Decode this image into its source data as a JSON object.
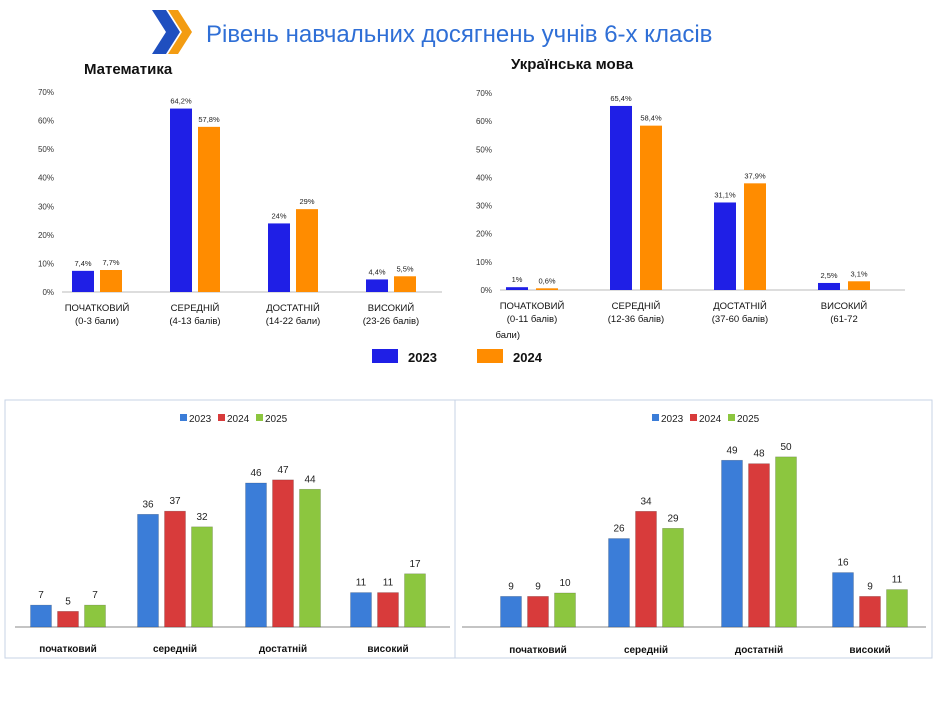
{
  "title": "Рівень навчальних досягнень учнів 6-х класів",
  "colors": {
    "title": "#2f6fd6",
    "logo_orange": "#f39c12",
    "logo_blue": "#1f4fbf",
    "top_2023": "#1f1fe6",
    "top_2024": "#ff8c00",
    "bottom_2023": "#3b7dd8",
    "bottom_2024": "#d83b3b",
    "bottom_2025": "#8cc63f",
    "frame": "#c7d3e6"
  },
  "top_legend": [
    {
      "name": "2023",
      "color": "#1f1fe6"
    },
    {
      "name": "2024",
      "color": "#ff8c00"
    }
  ],
  "chart_data": [
    {
      "type": "bar",
      "title": "Математика",
      "categories": [
        [
          "ПОЧАТКОВИЙ",
          "(0-3 бали)"
        ],
        [
          "СЕРЕДНІЙ",
          "(4-13 балів)"
        ],
        [
          "ДОСТАТНІЙ",
          "(14-22 бали)"
        ],
        [
          "ВИСОКИЙ",
          "(23-26 балів)"
        ]
      ],
      "series": [
        {
          "name": "2023",
          "values": [
            7.4,
            64.2,
            24,
            4.4
          ],
          "labels": [
            "7,4%",
            "64,2%",
            "24%",
            "4,4%"
          ],
          "color": "#1f1fe6"
        },
        {
          "name": "2024",
          "values": [
            7.7,
            57.8,
            29,
            5.5
          ],
          "labels": [
            "7,7%",
            "57,8%",
            "29%",
            "5,5%"
          ],
          "color": "#ff8c00"
        }
      ],
      "ylim": [
        0,
        70
      ],
      "yticks": [
        "0%",
        "10%",
        "20%",
        "30%",
        "40%",
        "50%",
        "60%",
        "70%"
      ],
      "grid": false
    },
    {
      "type": "bar",
      "title": "Українська мова",
      "categories": [
        [
          "ПОЧАТКОВИЙ",
          "(0-11 балів)",
          "бали)"
        ],
        [
          "СЕРЕДНІЙ",
          "(12-36 балів)"
        ],
        [
          "ДОСТАТНІЙ",
          "(37-60 балів)"
        ],
        [
          "ВИСОКИЙ",
          "(61-72"
        ]
      ],
      "series": [
        {
          "name": "2023",
          "values": [
            1,
            65.4,
            31.1,
            2.5
          ],
          "labels": [
            "1%",
            "65,4%",
            "31,1%",
            "2,5%"
          ],
          "color": "#1f1fe6"
        },
        {
          "name": "2024",
          "values": [
            0.6,
            58.4,
            37.9,
            3.1
          ],
          "labels": [
            "0,6%",
            "58,4%",
            "37,9%",
            "3,1%"
          ],
          "color": "#ff8c00"
        }
      ],
      "ylim": [
        0,
        70
      ],
      "yticks": [
        "0%",
        "10%",
        "20%",
        "30%",
        "40%",
        "50%",
        "60%",
        "70%"
      ],
      "grid": false
    },
    {
      "type": "bar",
      "categories": [
        "початковий",
        "середній",
        "достатній",
        "високий"
      ],
      "series": [
        {
          "name": "2023",
          "values": [
            7,
            36,
            46,
            11
          ],
          "color": "#3b7dd8"
        },
        {
          "name": "2024",
          "values": [
            5,
            37,
            47,
            11
          ],
          "color": "#d83b3b"
        },
        {
          "name": "2025",
          "values": [
            7,
            32,
            44,
            17
          ],
          "color": "#8cc63f"
        }
      ],
      "legend": "top-center",
      "ylim": [
        0,
        50
      ]
    },
    {
      "type": "bar",
      "categories": [
        "початковий",
        "середній",
        "достатній",
        "високий"
      ],
      "series": [
        {
          "name": "2023",
          "values": [
            9,
            26,
            49,
            16
          ],
          "color": "#3b7dd8"
        },
        {
          "name": "2024",
          "values": [
            9,
            34,
            48,
            9
          ],
          "color": "#d83b3b"
        },
        {
          "name": "2025",
          "values": [
            10,
            29,
            50,
            11
          ],
          "color": "#8cc63f"
        }
      ],
      "legend": "top-center",
      "ylim": [
        0,
        50
      ]
    }
  ]
}
